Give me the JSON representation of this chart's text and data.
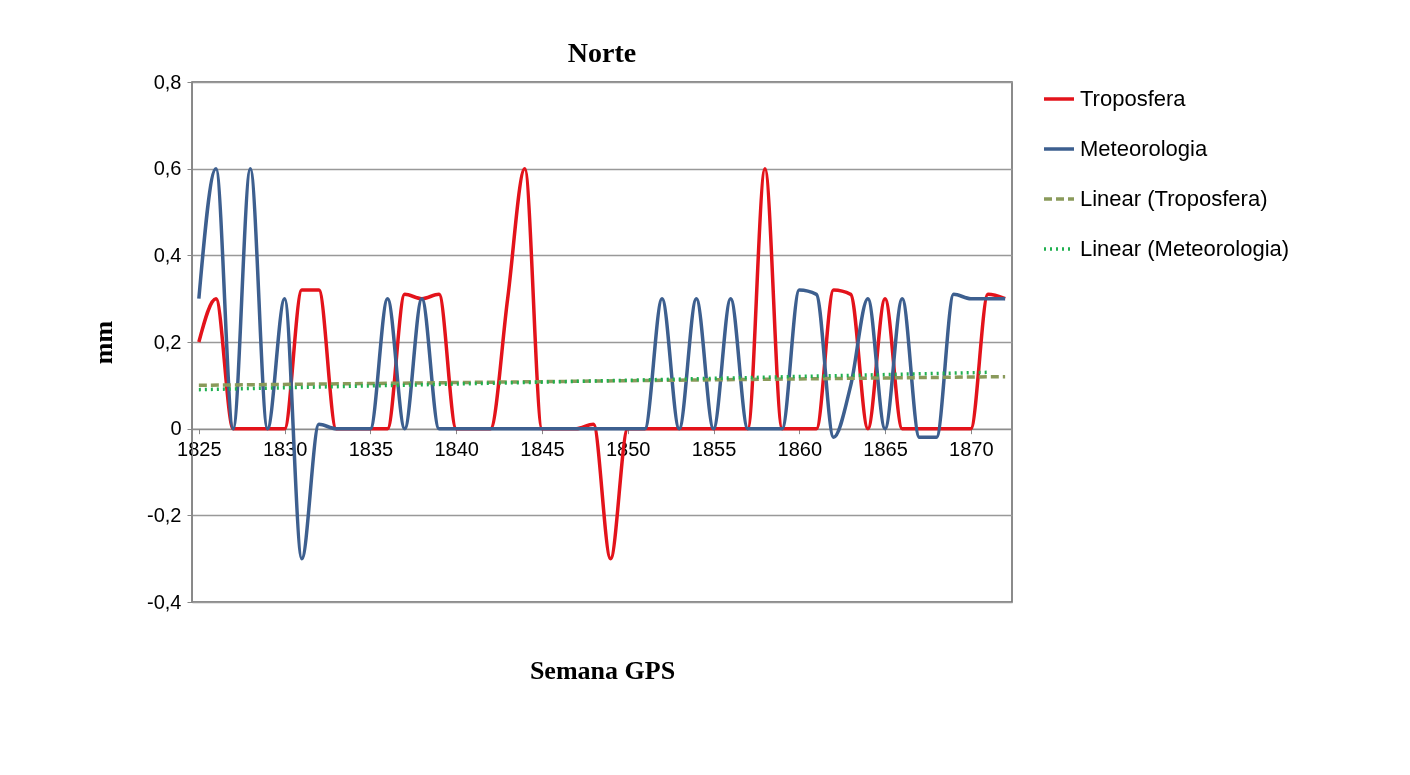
{
  "chart_data": {
    "type": "line",
    "title": "Norte",
    "xlabel": "Semana GPS",
    "ylabel": "mm",
    "x": [
      1825,
      1826,
      1827,
      1828,
      1829,
      1830,
      1831,
      1832,
      1833,
      1834,
      1835,
      1836,
      1837,
      1838,
      1839,
      1840,
      1841,
      1842,
      1843,
      1844,
      1845,
      1846,
      1847,
      1848,
      1849,
      1850,
      1851,
      1852,
      1853,
      1854,
      1855,
      1856,
      1857,
      1858,
      1859,
      1860,
      1861,
      1862,
      1863,
      1864,
      1865,
      1866,
      1867,
      1868,
      1869,
      1870,
      1871,
      1872
    ],
    "series": [
      {
        "name": "Troposfera",
        "color": "#e3131b",
        "line_style": "solid",
        "values": [
          0.2,
          0.3,
          0,
          0,
          0,
          0,
          0.32,
          0.32,
          0,
          0,
          0,
          0,
          0.31,
          0.3,
          0.31,
          0,
          0,
          0,
          0.3,
          0.6,
          0,
          0,
          0,
          0.01,
          -0.3,
          0,
          0,
          0,
          0,
          0,
          0,
          0,
          0,
          0.6,
          0,
          0,
          0,
          0.32,
          0.31,
          0,
          0.3,
          0,
          0,
          0,
          0,
          0,
          0.31,
          0.3
        ]
      },
      {
        "name": "Meteorologia",
        "color": "#3d5f8f",
        "line_style": "solid",
        "values": [
          0.3,
          0.6,
          0,
          0.6,
          0,
          0.3,
          -0.3,
          0.01,
          0,
          0,
          0,
          0.3,
          0,
          0.3,
          0,
          0,
          0,
          0,
          0,
          0,
          0,
          0,
          0,
          0,
          0,
          0,
          0,
          0.3,
          0,
          0.3,
          0,
          0.3,
          0,
          0,
          0,
          0.32,
          0.31,
          -0.02,
          0.1,
          0.3,
          0,
          0.3,
          -0.02,
          -0.02,
          0.31,
          0.3,
          0.3,
          0.3
        ]
      },
      {
        "name": "Linear (Troposfera)",
        "type": "line",
        "color": "#8a9a5b",
        "line_style": "dashed",
        "x": [
          1825,
          1872
        ],
        "values": [
          0.1,
          0.12
        ]
      },
      {
        "name": "Linear (Meteorologia)",
        "type": "line",
        "color": "#1fb04f",
        "line_style": "dotted",
        "x": [
          1825,
          1871
        ],
        "values": [
          0.09,
          0.13
        ]
      }
    ],
    "xlim": [
      1824.6,
      1872.4
    ],
    "xticks": [
      1825,
      1830,
      1835,
      1840,
      1845,
      1850,
      1855,
      1860,
      1865,
      1870
    ],
    "ylim": [
      -0.4,
      0.8
    ],
    "yticks": [
      {
        "value": -0.4,
        "label": "-0,4"
      },
      {
        "value": -0.2,
        "label": "-0,2"
      },
      {
        "value": 0,
        "label": "0"
      },
      {
        "value": 0.2,
        "label": "0,2"
      },
      {
        "value": 0.4,
        "label": "0,4"
      },
      {
        "value": 0.6,
        "label": "0,6"
      },
      {
        "value": 0.8,
        "label": "0,8"
      }
    ],
    "grid": "y",
    "legend": "right"
  }
}
